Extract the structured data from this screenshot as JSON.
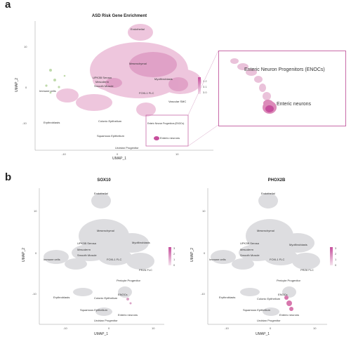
{
  "panel_a": {
    "letter": "a",
    "title": "ASD Risk Gene Enrichment",
    "xlabel": "UMAP_1",
    "ylabel": "UMAP_2",
    "yticks": [
      "10",
      "0",
      "-10"
    ],
    "xticks": [
      "-10",
      "0",
      "10"
    ],
    "legend_ticks": [
      "3.2",
      "3.1",
      "3.0"
    ],
    "clusters": [
      "Endothelial",
      "Mesenchymal",
      "UPK3B Serosa",
      "Mesoderm",
      "Smooth Muscle",
      "Immune cells",
      "Myofibroblasts",
      "FOXL1 FLC",
      "Vascular SMC",
      "Erythroblasts",
      "Colonic Epithelium",
      "Enteric Neuron Progenitors (ENOCs)",
      "Enteric neurons",
      "Squamous Epithelium",
      "Urobian Progenitor"
    ],
    "inset_labels": [
      "Enteric Neuron Progenitors (ENOCs)",
      "Enteric neurons"
    ],
    "accent": "#c64f9c"
  },
  "panel_b": {
    "letter": "b",
    "plots": [
      {
        "title": "SOX10",
        "xlabel": "UMAP_1",
        "ylabel": "UMAP_2",
        "yticks": [
          "10",
          "0",
          "-10"
        ],
        "xticks": [
          "-10",
          "0",
          "10"
        ],
        "legend_ticks": [
          "3",
          "2",
          "1",
          "0"
        ],
        "clusters": [
          "Endothelial",
          "Mesenchymal",
          "UPK3B Serosa",
          "Mesoderm",
          "Smooth Muscle",
          "Myofibroblasts",
          "Immune cells",
          "FOXL1 FLC",
          "PRZ6 FLC",
          "Pericyte Progenitor",
          "Erythroblasts",
          "ENOCs",
          "Colonic Epithelium",
          "Squamous Epithelium",
          "Enteric neurons",
          "Urobian Progenitor"
        ]
      },
      {
        "title": "PHOX2B",
        "xlabel": "UMAP_1",
        "ylabel": "UMAP_2",
        "yticks": [
          "10",
          "0",
          "-10"
        ],
        "xticks": [
          "-10",
          "0",
          "10"
        ],
        "legend_ticks": [
          "3",
          "2",
          "1",
          "0"
        ],
        "clusters": [
          "Endothelial",
          "Mesenchymal",
          "UPK3B Serosa",
          "Mesoderm",
          "Smooth Muscle",
          "Myofibroblasts",
          "Immune cells",
          "FOXL1 FLC",
          "PRZ6 FLC",
          "Pericyte Progenitor",
          "Erythroblasts",
          "ENOCs",
          "Colonic Epithelium",
          "Squamous Epithelium",
          "Enteric neurons",
          "Urobian Progenitor"
        ]
      }
    ]
  },
  "colors": {
    "cells_grey": "#dcdcdf",
    "cells_pink": "#e9b3d2",
    "cells_green": "#b9d7a3",
    "legend_top": "#c64f9c",
    "legend_bottom": "#f5e3ee",
    "inset_border": "#c86aa8"
  }
}
